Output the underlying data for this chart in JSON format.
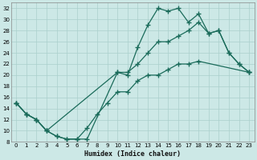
{
  "xlabel": "Humidex (Indice chaleur)",
  "bg_color": "#cce8e6",
  "grid_color": "#aacfcc",
  "line_color": "#1a6b5a",
  "ylim": [
    8,
    33
  ],
  "xlim": [
    -0.5,
    23.5
  ],
  "yticks": [
    8,
    10,
    12,
    14,
    16,
    18,
    20,
    22,
    24,
    26,
    28,
    30,
    32
  ],
  "xticks": [
    0,
    1,
    2,
    3,
    4,
    5,
    6,
    7,
    8,
    9,
    10,
    11,
    12,
    13,
    14,
    15,
    16,
    17,
    18,
    19,
    20,
    21,
    22,
    23
  ],
  "line_max_x": [
    0,
    1,
    2,
    3,
    4,
    5,
    6,
    7,
    10,
    11,
    12,
    13,
    14,
    15,
    16,
    17,
    18,
    19,
    20,
    21,
    22,
    23
  ],
  "line_max_y": [
    15,
    13,
    12,
    10,
    9,
    8.5,
    8.5,
    8.5,
    20.5,
    20,
    25,
    29,
    32,
    31.5,
    32,
    29.5,
    31,
    27.5,
    28,
    24,
    22,
    20.5
  ],
  "line_mean_x": [
    0,
    1,
    2,
    3,
    10,
    11,
    12,
    13,
    14,
    15,
    16,
    17,
    18,
    19,
    20,
    21,
    22,
    23
  ],
  "line_mean_y": [
    15,
    13,
    12,
    10,
    20.5,
    20.5,
    22,
    24,
    26,
    26,
    27,
    28,
    29.5,
    27.5,
    28,
    24,
    22,
    20.5
  ],
  "line_min_x": [
    0,
    1,
    2,
    3,
    4,
    5,
    6,
    7,
    8,
    9,
    10,
    11,
    12,
    13,
    14,
    15,
    16,
    17,
    18,
    23
  ],
  "line_min_y": [
    15,
    13,
    12,
    10,
    9,
    8.5,
    8.5,
    10.5,
    13,
    15,
    17,
    17,
    19,
    20,
    20,
    21,
    22,
    22,
    22.5,
    20.5
  ]
}
